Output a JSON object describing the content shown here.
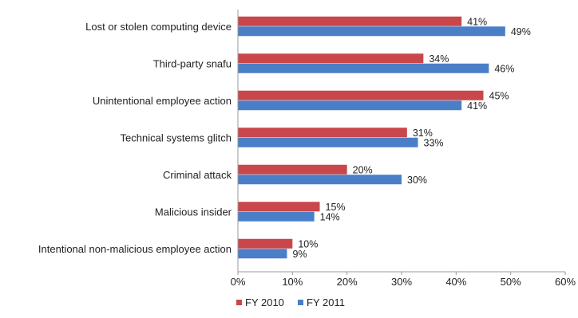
{
  "chart_data": {
    "type": "bar",
    "orientation": "horizontal",
    "categories": [
      "Lost or stolen computing device",
      "Third-party snafu",
      "Unintentional employee action",
      "Technical systems glitch",
      "Criminal attack",
      "Malicious insider",
      "Intentional non-malicious employee action"
    ],
    "series": [
      {
        "name": "FY 2010",
        "color": "#c9474a",
        "values": [
          41,
          34,
          45,
          31,
          20,
          15,
          10
        ],
        "labels": [
          "41%",
          "34%",
          "45%",
          "31%",
          "20%",
          "15%",
          "10%"
        ]
      },
      {
        "name": "FY 2011",
        "color": "#4a7fc7",
        "values": [
          49,
          46,
          41,
          33,
          30,
          14,
          9
        ],
        "labels": [
          "49%",
          "46%",
          "41%",
          "33%",
          "30%",
          "14%",
          "9%"
        ]
      }
    ],
    "xlim": [
      0,
      60
    ],
    "xticks": [
      0,
      10,
      20,
      30,
      40,
      50,
      60
    ],
    "xtick_labels": [
      "0%",
      "10%",
      "20%",
      "30%",
      "40%",
      "50%",
      "60%"
    ],
    "grid": false,
    "legend_position": "bottom-center"
  }
}
